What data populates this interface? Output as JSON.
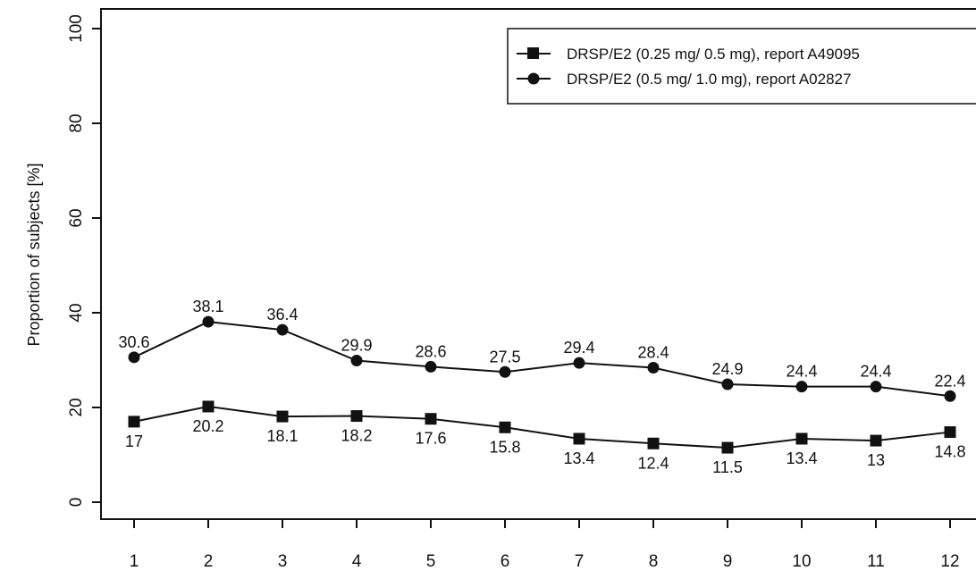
{
  "chart_data": {
    "type": "line",
    "title": "",
    "xlabel": "",
    "ylabel": "Proportion of subjects [%]",
    "x": [
      1,
      2,
      3,
      4,
      5,
      6,
      7,
      8,
      9,
      10,
      11,
      12
    ],
    "x_tick_labels": [
      "1",
      "2",
      "3",
      "4",
      "5",
      "6",
      "7",
      "8",
      "9",
      "10",
      "11",
      "12"
    ],
    "ylim": [
      0,
      100
    ],
    "y_ticks": [
      0,
      20,
      40,
      60,
      80,
      100
    ],
    "y_tick_labels": [
      "0",
      "20",
      "40",
      "60",
      "80",
      "100"
    ],
    "grid": false,
    "legend_position": "top-right",
    "series": [
      {
        "name": "DRSP/E2 (0.25 mg/ 0.5 mg), report A49095",
        "marker": "square",
        "color": "#111111",
        "values": [
          17,
          20.2,
          18.1,
          18.2,
          17.6,
          15.8,
          13.4,
          12.4,
          11.5,
          13.4,
          13,
          14.8
        ],
        "data_labels": [
          "17",
          "20.2",
          "18.1",
          "18.2",
          "17.6",
          "15.8",
          "13.4",
          "12.4",
          "11.5",
          "13.4",
          "13",
          "14.8"
        ]
      },
      {
        "name": "DRSP/E2 (0.5 mg/ 1.0 mg), report A02827",
        "marker": "circle",
        "color": "#111111",
        "values": [
          30.6,
          38.1,
          36.4,
          29.9,
          28.6,
          27.5,
          29.4,
          28.4,
          24.9,
          24.4,
          24.4,
          22.4
        ],
        "data_labels": [
          "30.6",
          "38.1",
          "36.4",
          "29.9",
          "28.6",
          "27.5",
          "29.4",
          "28.4",
          "24.9",
          "24.4",
          "24.4",
          "22.4"
        ]
      }
    ]
  }
}
